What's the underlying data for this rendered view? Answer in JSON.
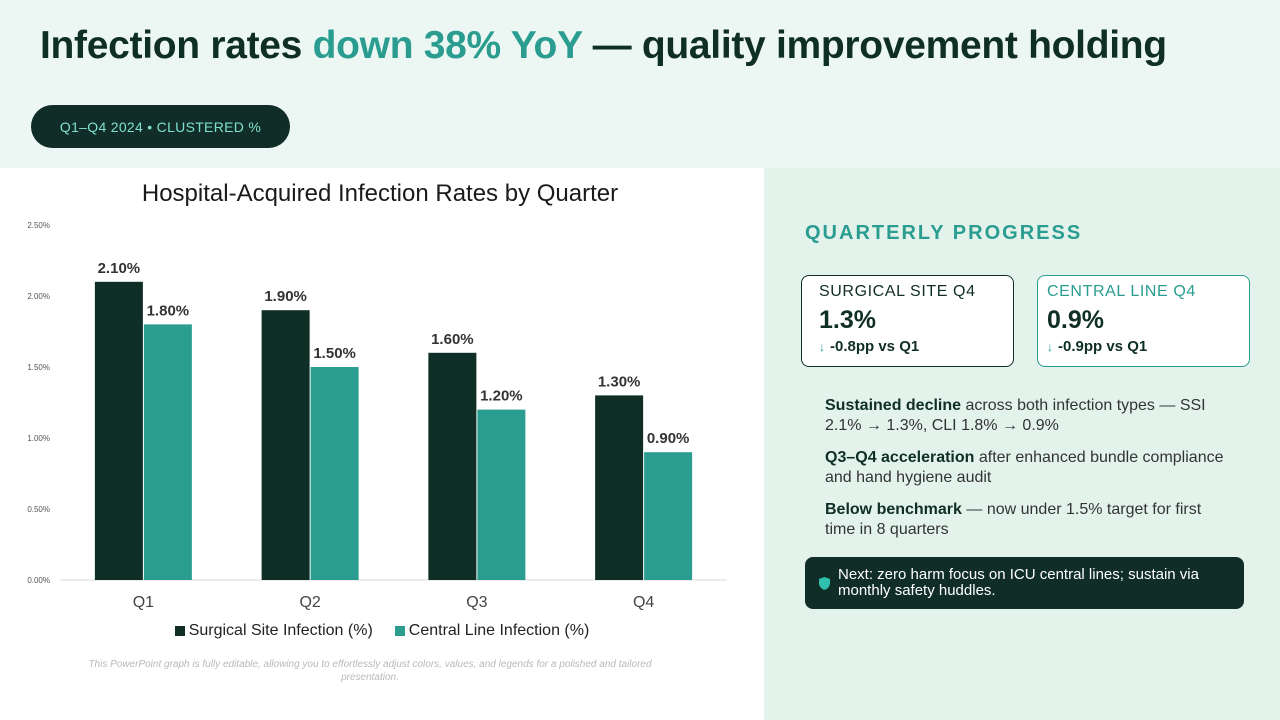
{
  "header": {
    "title_main": "Infection rates ",
    "title_accent": "down 38% YoY",
    "title_rest": " — quality improvement holding",
    "pill": "Q1–Q4 2024 • CLUSTERED %"
  },
  "chart_data": {
    "type": "bar",
    "title": "Hospital-Acquired Infection Rates by Quarter",
    "categories": [
      "Q1",
      "Q2",
      "Q3",
      "Q4"
    ],
    "series": [
      {
        "name": "Surgical Site Infection (%)",
        "values": [
          2.1,
          1.9,
          1.6,
          1.3
        ],
        "labels": [
          "2.10%",
          "1.90%",
          "1.60%",
          "1.30%"
        ],
        "color": "#0f2e26"
      },
      {
        "name": "Central Line Infection (%)",
        "values": [
          1.8,
          1.5,
          1.2,
          0.9
        ],
        "labels": [
          "1.80%",
          "1.50%",
          "1.20%",
          "0.90%"
        ],
        "color": "#2a9d90"
      }
    ],
    "ylim": [
      0,
      2.5
    ],
    "yticks": [
      0,
      0.5,
      1.0,
      1.5,
      2.0,
      2.5
    ],
    "ytick_labels": [
      "0.00%",
      "0.50%",
      "1.00%",
      "1.50%",
      "2.00%",
      "2.50%"
    ],
    "xlabel": "",
    "ylabel": "",
    "grid": false,
    "legend_position": "bottom"
  },
  "footnote": "This PowerPoint graph is fully editable, allowing you to effortlessly adjust colors, values, and legends for a polished and tailored presentation.",
  "panel": {
    "heading": "QUARTERLY PROGRESS",
    "kpis": [
      {
        "label": "SURGICAL SITE Q4",
        "value": "1.3%",
        "delta": "-0.8pp vs Q1",
        "icon": "arrow-down-icon"
      },
      {
        "label": "CENTRAL LINE Q4",
        "value": "0.9%",
        "delta": "-0.9pp vs Q1",
        "icon": "arrow-down-icon"
      }
    ],
    "bullets": [
      {
        "bold": "Sustained decline",
        "text": " across both infection types — SSI 2.1% → 1.3%, CLI 1.8% → 0.9%"
      },
      {
        "bold": "Q3–Q4 acceleration",
        "text": " after enhanced bundle compliance and hand hygiene audit"
      },
      {
        "bold": "Below benchmark",
        "text": " — now under 1.5% target for first time in 8 quarters"
      }
    ],
    "callout": "Next: zero harm focus on ICU central lines; sustain via monthly safety huddles.",
    "callout_icon": "shield-icon"
  },
  "colors": {
    "dark": "#0f2e26",
    "accent": "#2a9d90",
    "header_bg": "#ecf7f3",
    "panel_bg": "#e3f3ec"
  }
}
